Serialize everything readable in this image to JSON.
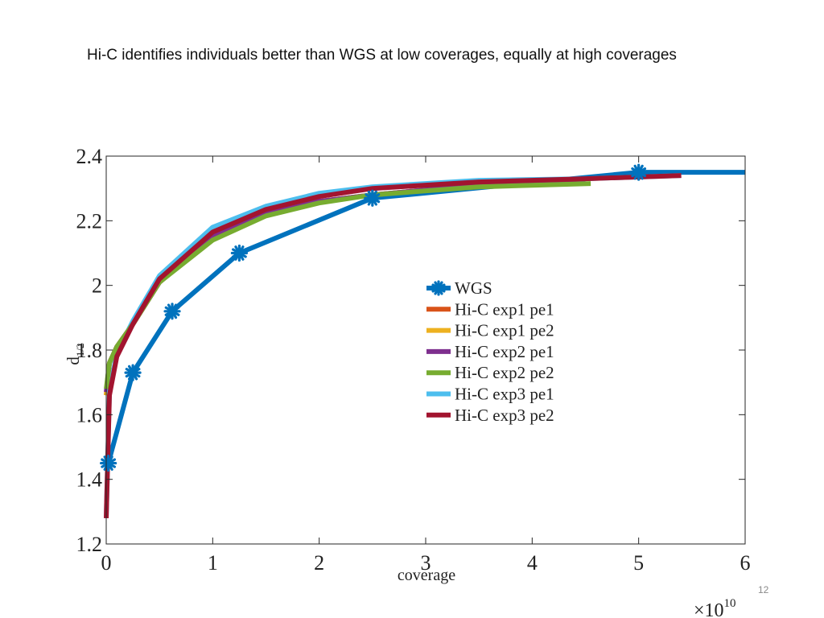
{
  "slide": {
    "title": "Hi-C identifies individuals better than WGS at low coverages, equally at high coverages",
    "page_number": "12"
  },
  "chart_data": {
    "type": "line",
    "xlabel": "coverage",
    "ylabel": "d_{1/2}",
    "ylabel_main": "d",
    "ylabel_sub": "1/2",
    "x_exponent_base": "×10",
    "x_exponent_power": "10",
    "xlim": [
      0,
      6
    ],
    "ylim": [
      1.2,
      2.4
    ],
    "x_unit_multiplier": 10000000000,
    "xticks": [
      0,
      1,
      2,
      3,
      4,
      5,
      6
    ],
    "yticks": [
      1.2,
      1.4,
      1.6,
      1.8,
      2.0,
      2.2,
      2.4
    ],
    "xtick_labels": [
      "0",
      "1",
      "2",
      "3",
      "4",
      "5",
      "6"
    ],
    "ytick_labels": [
      "1.2",
      "1.4",
      "1.6",
      "1.8",
      "2",
      "2.2",
      "2.4"
    ],
    "grid": false,
    "legend_position": "center-right",
    "series": [
      {
        "name": "WGS",
        "color": "#0072BD",
        "marker": "asterisk",
        "x": [
          0.02,
          0.25,
          0.62,
          1.25,
          2.5,
          5.0,
          6.0
        ],
        "y": [
          1.45,
          1.73,
          1.92,
          2.1,
          2.27,
          2.35,
          2.35
        ]
      },
      {
        "name": "Hi-C exp1 pe1",
        "color": "#D95319",
        "marker": "none",
        "x": [
          0.0,
          0.03,
          0.1,
          0.25,
          0.5,
          1.0,
          1.5,
          2.0,
          2.5,
          3.5,
          4.5
        ],
        "y": [
          1.66,
          1.76,
          1.81,
          1.88,
          2.01,
          2.15,
          2.22,
          2.26,
          2.28,
          2.31,
          2.32
        ]
      },
      {
        "name": "Hi-C exp1 pe2",
        "color": "#EDB120",
        "marker": "none",
        "x": [
          0.0,
          0.03,
          0.1,
          0.25,
          0.5,
          1.0,
          1.5,
          2.0,
          2.5,
          3.5,
          4.5
        ],
        "y": [
          1.66,
          1.76,
          1.81,
          1.88,
          2.01,
          2.15,
          2.22,
          2.26,
          2.28,
          2.31,
          2.32
        ]
      },
      {
        "name": "Hi-C exp2 pe1",
        "color": "#7E2F8E",
        "marker": "none",
        "x": [
          0.0,
          0.03,
          0.1,
          0.25,
          0.5,
          1.0,
          1.5,
          2.0,
          2.5,
          3.5,
          4.5
        ],
        "y": [
          1.67,
          1.76,
          1.81,
          1.88,
          2.01,
          2.15,
          2.22,
          2.26,
          2.28,
          2.31,
          2.32
        ]
      },
      {
        "name": "Hi-C exp2 pe2",
        "color": "#77AC30",
        "marker": "none",
        "x": [
          0.0,
          0.03,
          0.1,
          0.25,
          0.5,
          1.0,
          1.5,
          2.0,
          2.5,
          3.5,
          4.55
        ],
        "y": [
          1.68,
          1.76,
          1.81,
          1.88,
          2.01,
          2.14,
          2.215,
          2.255,
          2.28,
          2.305,
          2.315
        ]
      },
      {
        "name": "Hi-C exp3 pe1",
        "color": "#4DBEEE",
        "marker": "none",
        "x": [
          0.0,
          0.03,
          0.1,
          0.25,
          0.5,
          1.0,
          1.5,
          2.0,
          2.5,
          3.5,
          4.5,
          5.4
        ],
        "y": [
          1.28,
          1.67,
          1.79,
          1.89,
          2.03,
          2.18,
          2.245,
          2.285,
          2.305,
          2.325,
          2.33,
          2.34
        ]
      },
      {
        "name": "Hi-C exp3 pe2",
        "color": "#A2142F",
        "marker": "none",
        "x": [
          0.0,
          0.03,
          0.1,
          0.25,
          0.5,
          1.0,
          1.5,
          2.0,
          2.5,
          3.5,
          4.5,
          5.4
        ],
        "y": [
          1.28,
          1.66,
          1.78,
          1.88,
          2.02,
          2.165,
          2.235,
          2.275,
          2.3,
          2.32,
          2.33,
          2.34
        ]
      }
    ]
  }
}
